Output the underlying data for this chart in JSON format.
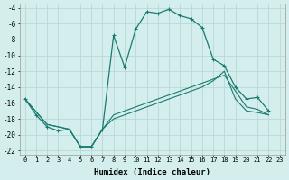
{
  "xlabel": "Humidex (Indice chaleur)",
  "background_color": "#d4eeee",
  "grid_color": "#b8d8d8",
  "line_color": "#1a7a6e",
  "xlim": [
    -0.5,
    23.5
  ],
  "ylim": [
    -22.5,
    -3.5
  ],
  "yticks": [
    -4,
    -6,
    -8,
    -10,
    -12,
    -14,
    -16,
    -18,
    -20,
    -22
  ],
  "xticks": [
    0,
    1,
    2,
    3,
    4,
    5,
    6,
    7,
    8,
    9,
    10,
    11,
    12,
    13,
    14,
    15,
    16,
    17,
    18,
    19,
    20,
    21,
    22,
    23
  ],
  "line1_x": [
    0,
    1,
    2,
    3,
    4,
    5,
    6,
    7,
    8,
    9,
    10,
    11,
    12,
    13,
    14,
    15,
    16,
    17,
    18,
    19,
    20,
    21,
    22
  ],
  "line1_y": [
    -15.5,
    -17.5,
    -19.0,
    -19.5,
    -19.3,
    -21.5,
    -21.5,
    -19.3,
    -7.5,
    -11.5,
    -6.7,
    -4.5,
    -4.7,
    -4.2,
    -5.0,
    -5.4,
    -6.5,
    -10.5,
    -11.3,
    -14.0,
    -15.5,
    -15.3,
    -17.0
  ],
  "line2_x": [
    0,
    2,
    3,
    4,
    5,
    6,
    7,
    8,
    9,
    10,
    11,
    12,
    13,
    14,
    15,
    16,
    17,
    18,
    19,
    20,
    21,
    22
  ],
  "line2_y": [
    -15.5,
    -18.7,
    -19.0,
    -19.3,
    -21.5,
    -21.5,
    -19.3,
    -17.5,
    -17.0,
    -16.5,
    -16.0,
    -15.5,
    -15.0,
    -14.5,
    -14.0,
    -13.5,
    -13.0,
    -12.5,
    -14.5,
    -16.5,
    -16.8,
    -17.5
  ],
  "line3_x": [
    0,
    2,
    3,
    4,
    5,
    6,
    7,
    8,
    9,
    10,
    11,
    12,
    13,
    14,
    15,
    16,
    17,
    18,
    19,
    20,
    21,
    22
  ],
  "line3_y": [
    -15.5,
    -18.7,
    -19.0,
    -19.3,
    -21.5,
    -21.5,
    -19.3,
    -18.0,
    -17.5,
    -17.0,
    -16.5,
    -16.0,
    -15.5,
    -15.0,
    -14.5,
    -14.0,
    -13.2,
    -12.0,
    -15.5,
    -17.0,
    -17.2,
    -17.5
  ]
}
